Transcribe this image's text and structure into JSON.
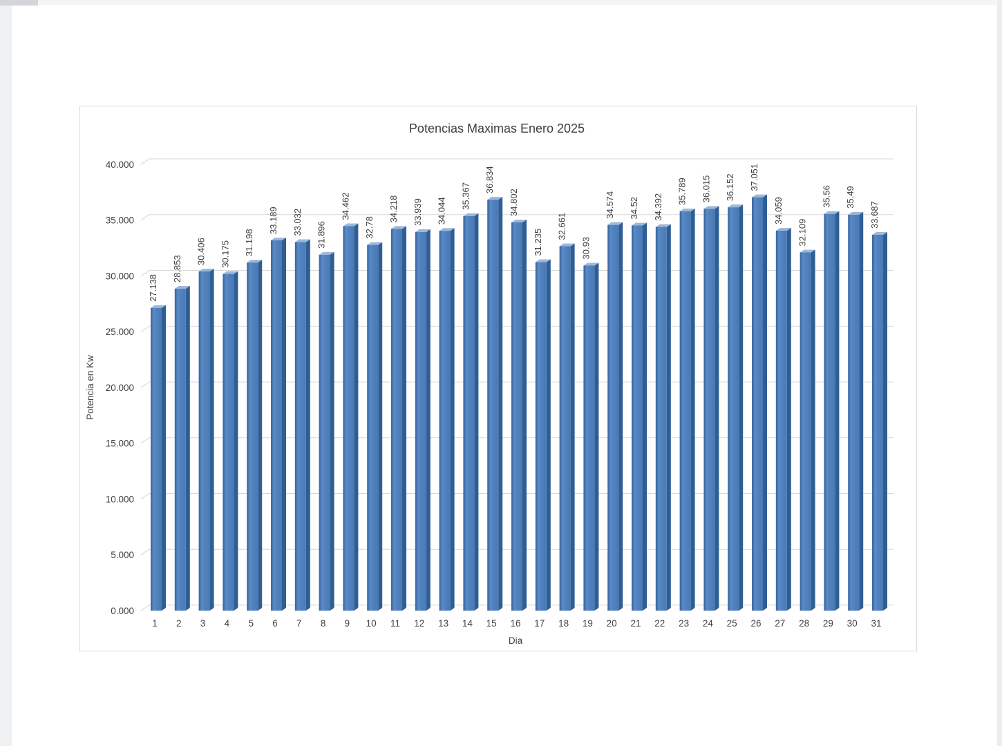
{
  "chart_data": {
    "type": "bar",
    "style": "3d-column",
    "title": "Potencias Maximas Enero 2025",
    "xlabel": "Dia",
    "ylabel": "Potencia en Kw",
    "categories": [
      1,
      2,
      3,
      4,
      5,
      6,
      7,
      8,
      9,
      10,
      11,
      12,
      13,
      14,
      15,
      16,
      17,
      18,
      19,
      20,
      21,
      22,
      23,
      24,
      25,
      26,
      27,
      28,
      29,
      30,
      31
    ],
    "values": [
      27138,
      28853,
      30406,
      30175,
      31198,
      33189,
      33032,
      31896,
      34462,
      32780,
      34218,
      33939,
      34044,
      35367,
      36834,
      34802,
      31235,
      32661,
      30930,
      34574,
      34520,
      34392,
      35789,
      36015,
      36152,
      37051,
      34059,
      32109,
      35560,
      35490,
      33687
    ],
    "value_labels": [
      "27.138",
      "28.853",
      "30.406",
      "30.175",
      "31.198",
      "33.189",
      "33.032",
      "31.896",
      "34.462",
      "32.78",
      "34.218",
      "33.939",
      "34.044",
      "35.367",
      "36.834",
      "34.802",
      "31.235",
      "32.661",
      "30.93",
      "34.574",
      "34.52",
      "34.392",
      "35.789",
      "36.015",
      "36.152",
      "37.051",
      "34.059",
      "32.109",
      "35.56",
      "35.49",
      "33.687"
    ],
    "y_ticks": [
      "0.000",
      "5.000",
      "10.000",
      "15.000",
      "20.000",
      "25.000",
      "30.000",
      "35.000",
      "40.000"
    ],
    "ylim": [
      0,
      40000
    ],
    "y_step": 5000,
    "grid": true,
    "legend": false,
    "colors": {
      "bar_front": "#4f81bd",
      "bar_front_edge": "#3c6ba6",
      "bar_side": "#2f5e95",
      "bar_top": "#9cb8da",
      "grid": "#d9d9d9",
      "text": "#404040",
      "title": "#3d3d3d"
    }
  }
}
